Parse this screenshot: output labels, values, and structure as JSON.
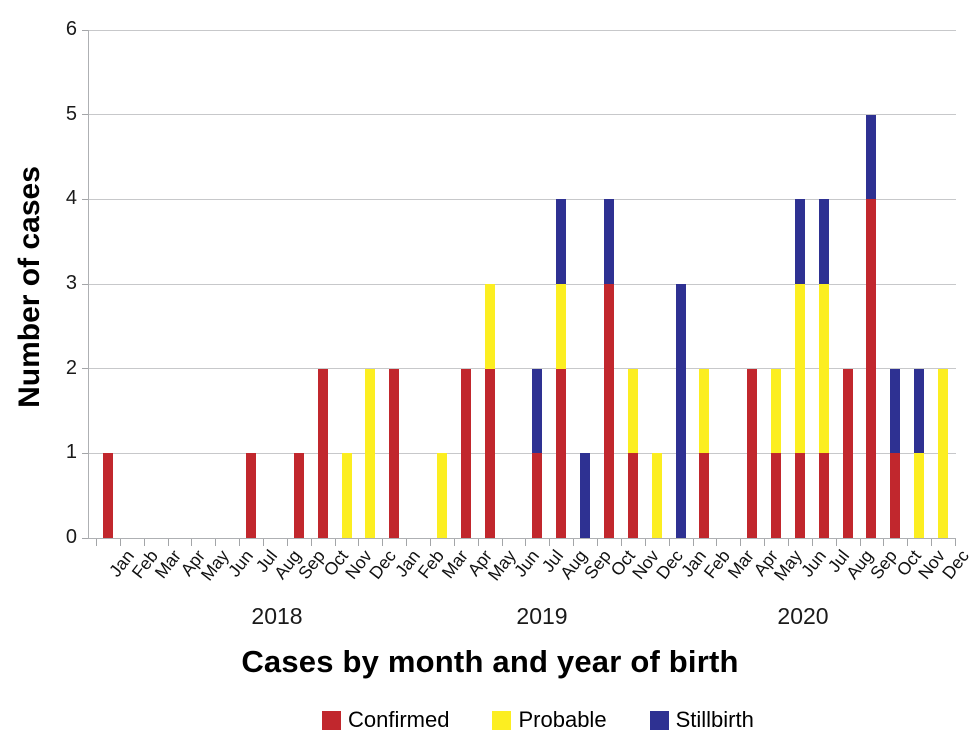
{
  "chart_data": {
    "type": "bar",
    "subtype": "stacked",
    "title": "Cases by month and year of birth",
    "ylabel": "Number of cases",
    "ylim": [
      0,
      6
    ],
    "yticks": [
      "0",
      "1",
      "2",
      "3",
      "4",
      "5",
      "6"
    ],
    "grid": "horizontal",
    "legend_position": "bottom",
    "months": [
      "Jan",
      "Feb",
      "Mar",
      "Apr",
      "May",
      "Jun",
      "Jul",
      "Aug",
      "Sep",
      "Oct",
      "Nov",
      "Dec"
    ],
    "year_groups": [
      {
        "label": "2018"
      },
      {
        "label": "2019"
      },
      {
        "label": "2020"
      }
    ],
    "series": [
      {
        "name": "Confirmed",
        "color": "#C1272D",
        "values": [
          1,
          0,
          0,
          0,
          0,
          0,
          1,
          0,
          1,
          2,
          0,
          0,
          2,
          0,
          0,
          2,
          2,
          0,
          1,
          2,
          0,
          3,
          1,
          0,
          0,
          1,
          0,
          2,
          1,
          1,
          1,
          2,
          4,
          1,
          0,
          0
        ]
      },
      {
        "name": "Probable",
        "color": "#FCEE21",
        "values": [
          0,
          0,
          0,
          0,
          0,
          0,
          0,
          0,
          0,
          0,
          1,
          2,
          0,
          0,
          1,
          0,
          1,
          0,
          0,
          1,
          0,
          0,
          1,
          1,
          0,
          1,
          0,
          0,
          1,
          2,
          2,
          0,
          0,
          0,
          1,
          2
        ]
      },
      {
        "name": "Stillbirth",
        "color": "#2E3192",
        "values": [
          0,
          0,
          0,
          0,
          0,
          0,
          0,
          0,
          0,
          0,
          0,
          0,
          0,
          0,
          0,
          0,
          0,
          0,
          1,
          1,
          1,
          1,
          0,
          0,
          3,
          0,
          0,
          0,
          0,
          1,
          1,
          0,
          1,
          1,
          1,
          0
        ]
      }
    ]
  },
  "style_colors": {
    "gridline": "#C7C8CA",
    "axis": "#AEB0B3",
    "tick": "#A3A5A8"
  }
}
